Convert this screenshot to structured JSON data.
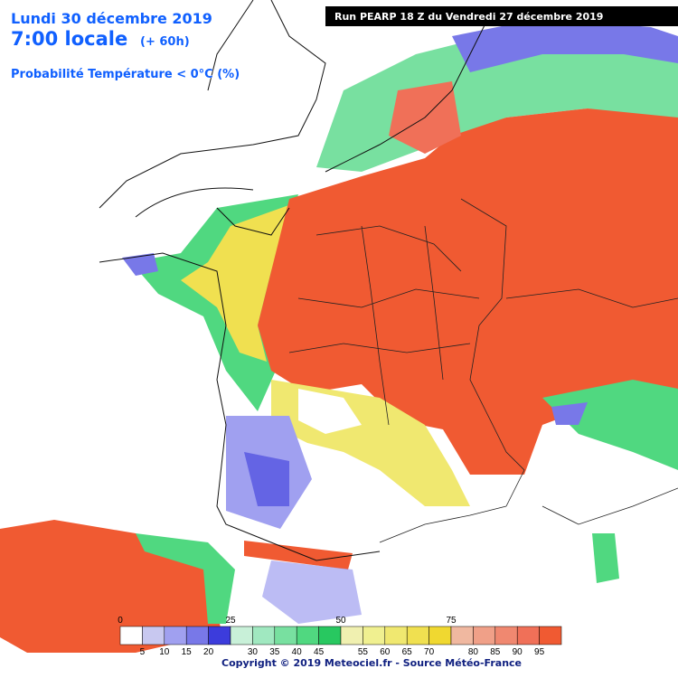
{
  "header": {
    "date": "Lundi 30 décembre 2019",
    "time": "7:00 locale",
    "lead": "(+ 60h)",
    "parameter": "Probabilité Température < 0°C (%)",
    "run": "Run PEARP 18 Z du Vendredi 27 décembre 2019"
  },
  "legend": {
    "top_labels": [
      0,
      25,
      50,
      75
    ],
    "bottom_labels": [
      5,
      10,
      15,
      20,
      30,
      35,
      40,
      45,
      55,
      60,
      65,
      70,
      80,
      85,
      90,
      95
    ],
    "colors": [
      "#ffffff",
      "#c8c8f0",
      "#a0a0f0",
      "#7878e8",
      "#3c3cdc",
      "#c8f0d8",
      "#a0e8c0",
      "#78e0a0",
      "#50d880",
      "#28c860",
      "#f0f0b0",
      "#f0f090",
      "#f0e870",
      "#f0e050",
      "#f0d830",
      "#f0b8a0",
      "#f0a088",
      "#f08870",
      "#f07058",
      "#f05a32"
    ]
  },
  "footer": {
    "copyright": "Copyright © 2019 Meteociel.fr - Source Météo-France"
  }
}
